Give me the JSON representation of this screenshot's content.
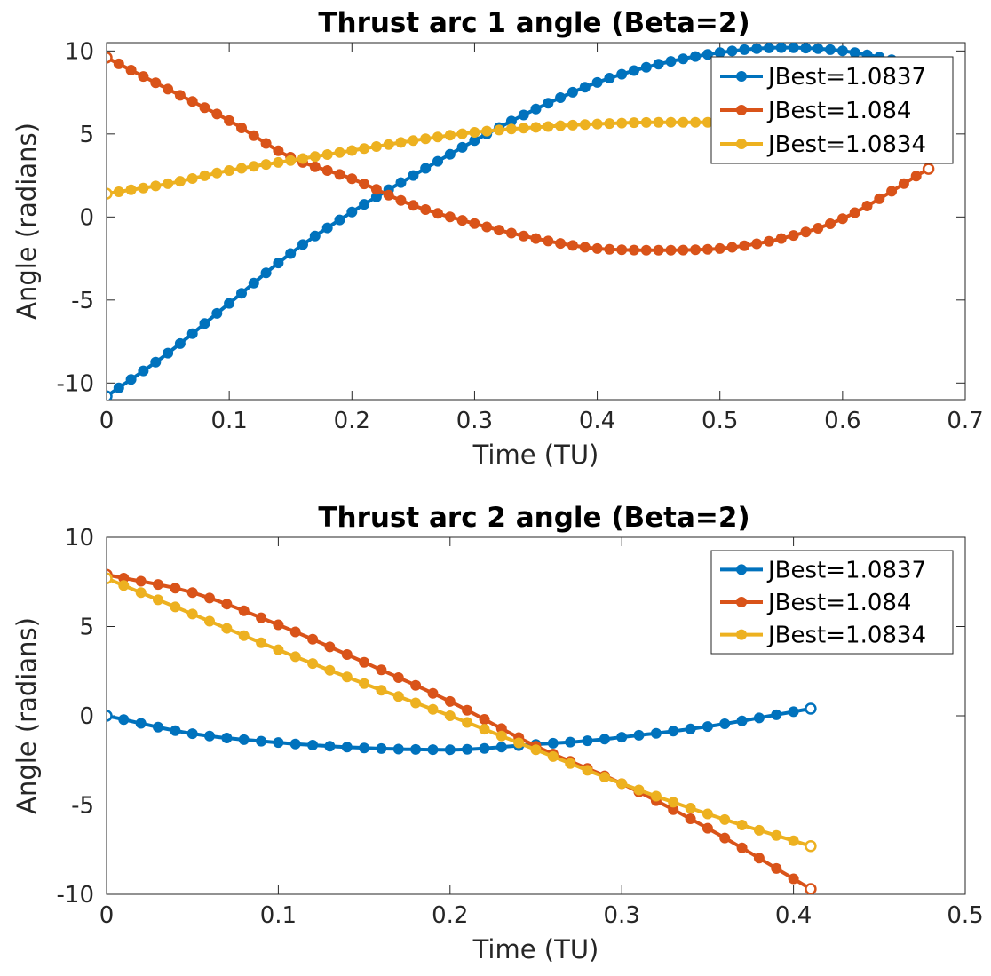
{
  "colors": {
    "series1": "#0072BD",
    "series2": "#D95319",
    "series3": "#EDB120",
    "axis": "#262626"
  },
  "chart_data": [
    {
      "type": "line",
      "title": "Thrust arc 1 angle (Beta=2)",
      "xlabel": "Time (TU)",
      "ylabel": "Angle (radians)",
      "xlim": [
        0,
        0.7
      ],
      "ylim": [
        -11,
        10.5
      ],
      "xticks": [
        0,
        0.1,
        0.2,
        0.3,
        0.4,
        0.5,
        0.6,
        0.7
      ],
      "yticks": [
        -10,
        -5,
        0,
        5,
        10
      ],
      "xtick_labels": [
        "0",
        "0.1",
        "0.2",
        "0.3",
        "0.4",
        "0.5",
        "0.6",
        "0.7"
      ],
      "ytick_labels": [
        "-10",
        "-5",
        "0",
        "5",
        "10"
      ],
      "legend": "top-right",
      "grid": false,
      "series": [
        {
          "name": "JBest=1.0837",
          "color": "#0072BD",
          "x": [
            0,
            0.05,
            0.1,
            0.15,
            0.2,
            0.25,
            0.3,
            0.35,
            0.4,
            0.45,
            0.5,
            0.55,
            0.6,
            0.67
          ],
          "y": [
            -10.8,
            -8.2,
            -5.2,
            -2.2,
            0.3,
            2.5,
            4.6,
            6.5,
            8.1,
            9.2,
            9.9,
            10.2,
            10.0,
            9.0
          ]
        },
        {
          "name": "JBest=1.084",
          "color": "#D95319",
          "x": [
            0,
            0.05,
            0.1,
            0.15,
            0.2,
            0.25,
            0.3,
            0.35,
            0.4,
            0.45,
            0.5,
            0.55,
            0.6,
            0.67
          ],
          "y": [
            9.6,
            7.7,
            5.8,
            3.6,
            2.3,
            0.7,
            -0.4,
            -1.3,
            -1.9,
            -2.0,
            -1.9,
            -1.3,
            -0.1,
            2.9
          ]
        },
        {
          "name": "JBest=1.0834",
          "color": "#EDB120",
          "x": [
            0,
            0.05,
            0.1,
            0.15,
            0.2,
            0.25,
            0.3,
            0.35,
            0.4,
            0.45,
            0.5,
            0.55,
            0.6
          ],
          "y": [
            1.4,
            2.0,
            2.8,
            3.4,
            4.0,
            4.6,
            5.1,
            5.4,
            5.6,
            5.7,
            5.7,
            5.7,
            5.7
          ]
        }
      ]
    },
    {
      "type": "line",
      "title": "Thrust arc 2 angle (Beta=2)",
      "xlabel": "Time (TU)",
      "ylabel": "Angle (radians)",
      "xlim": [
        0,
        0.5
      ],
      "ylim": [
        -10,
        10
      ],
      "xticks": [
        0,
        0.1,
        0.2,
        0.3,
        0.4,
        0.5
      ],
      "yticks": [
        -10,
        -5,
        0,
        5,
        10
      ],
      "xtick_labels": [
        "0",
        "0.1",
        "0.2",
        "0.3",
        "0.4",
        "0.5"
      ],
      "ytick_labels": [
        "-10",
        "-5",
        "0",
        "5",
        "10"
      ],
      "legend": "top-right",
      "grid": false,
      "series": [
        {
          "name": "JBest=1.0837",
          "color": "#0072BD",
          "x": [
            0,
            0.05,
            0.1,
            0.15,
            0.2,
            0.25,
            0.28,
            0.3,
            0.35,
            0.41
          ],
          "y": [
            0,
            -1.0,
            -1.5,
            -1.8,
            -1.9,
            -1.6,
            -1.4,
            -1.2,
            -0.6,
            0.4
          ]
        },
        {
          "name": "JBest=1.084",
          "color": "#D95319",
          "x": [
            0,
            0.05,
            0.1,
            0.15,
            0.2,
            0.25,
            0.3,
            0.35,
            0.41
          ],
          "y": [
            7.9,
            6.9,
            5.1,
            3.0,
            0.8,
            -1.7,
            -3.8,
            -6.3,
            -9.7
          ]
        },
        {
          "name": "JBest=1.0834",
          "color": "#EDB120",
          "x": [
            0,
            0.05,
            0.1,
            0.15,
            0.2,
            0.25,
            0.3,
            0.35,
            0.41
          ],
          "y": [
            7.7,
            5.7,
            3.7,
            1.8,
            0.0,
            -1.9,
            -3.8,
            -5.5,
            -7.3
          ]
        }
      ]
    }
  ]
}
